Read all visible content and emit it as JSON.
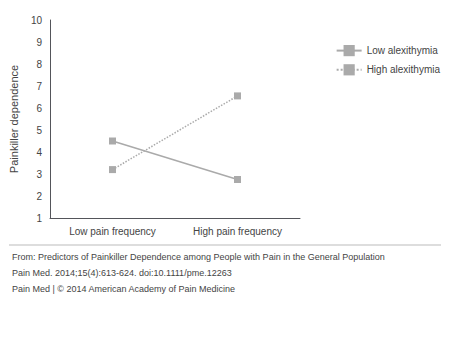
{
  "chart_data": {
    "type": "line",
    "ylabel": "Painkiller dependence",
    "categories": [
      "Low pain frequency",
      "High pain frequency"
    ],
    "series": [
      {
        "name": "Low alexithymia",
        "values": [
          4.5,
          2.75
        ],
        "color": "#aaaaaa",
        "line_style": "solid",
        "marker": "square"
      },
      {
        "name": "High alexithymia",
        "values": [
          3.2,
          6.55
        ],
        "color": "#aaaaaa",
        "line_style": "dotted",
        "marker": "square"
      }
    ],
    "ylim": [
      1,
      10
    ],
    "yticks": [
      1,
      2,
      3,
      4,
      5,
      6,
      7,
      8,
      9,
      10
    ],
    "grid": false,
    "legend": "right",
    "annotations": [
      "From: Predictors of Painkiller Dependence among People with Pain in the General Population",
      "Pain Med. 2014;15(4):613-624. doi:10.1111/pme.12263",
      "Pain Med | © 2014 American Academy of Pain Medicine"
    ]
  }
}
